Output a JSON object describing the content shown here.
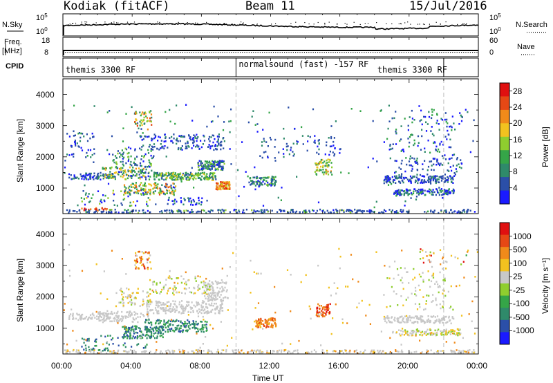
{
  "header": {
    "station": "Kodiak (fitACF)",
    "beam": "Beam 11",
    "date": "15/Jul/2016"
  },
  "top_panels": {
    "nsky_label": "N.Sky",
    "nsky_ticks": [
      "10^5",
      "10^0"
    ],
    "nsearch_label": "N.Search",
    "nsearch_ticks": [
      "10^5",
      "10^0"
    ],
    "freq_label": "Freq.",
    "freq_unit": "[MHz]",
    "freq_ticks": [
      "18",
      "8"
    ],
    "nave_label": "Nave",
    "nave_ticks": [
      "60",
      "0"
    ],
    "cpid_label": "CPID"
  },
  "cpid_segments": [
    {
      "label": "themis 3300 RF",
      "start_h": 0,
      "end_h": 10
    },
    {
      "label": "normalsound (fast) -157 RF",
      "start_h": 10,
      "end_h": 22
    },
    {
      "label": "themis 3300 RF",
      "start_h": 22,
      "end_h": 24
    }
  ],
  "chart_data": [
    {
      "type": "heatmap",
      "panel": "power",
      "ylabel": "Slant Range [km]",
      "xlabel": "Time UT",
      "x_ticks": [
        "00:00",
        "04:00",
        "08:00",
        "12:00",
        "16:00",
        "20:00",
        "00:00"
      ],
      "x_range_h": [
        0,
        24
      ],
      "y_ticks": [
        1000,
        2000,
        3000,
        4000
      ],
      "ylim": [
        180,
        4500
      ],
      "colorbar_label": "Power [dB]",
      "colorbar_ticks": [
        "4",
        "8",
        "12",
        "16",
        "20",
        "24",
        "28"
      ],
      "colorbar_range": [
        0,
        30
      ],
      "colors": [
        "#1a1aff",
        "#2b4fa8",
        "#2f8a6a",
        "#35a548",
        "#8fce2f",
        "#f2c21f",
        "#f08a1a",
        "#e64815",
        "#e01010"
      ]
    },
    {
      "type": "heatmap",
      "panel": "velocity",
      "ylabel": "Slant Range [km]",
      "xlabel": "Time UT",
      "x_ticks": [
        "00:00",
        "04:00",
        "08:00",
        "12:00",
        "16:00",
        "20:00",
        "00:00"
      ],
      "x_range_h": [
        0,
        24
      ],
      "y_ticks": [
        1000,
        2000,
        3000,
        4000
      ],
      "ylim": [
        180,
        4500
      ],
      "colorbar_label": "Velocity [m s⁻¹]",
      "colorbar_ticks": [
        "1000",
        "500",
        "100",
        "25",
        "-25",
        "-100",
        "-500",
        "-1000"
      ],
      "colors": [
        "#1a1aff",
        "#2b4fa8",
        "#2f8a6a",
        "#35a548",
        "#8fce2f",
        "#c8c8c8",
        "#f2c21f",
        "#f08a1a",
        "#e64815",
        "#e01010"
      ]
    }
  ]
}
